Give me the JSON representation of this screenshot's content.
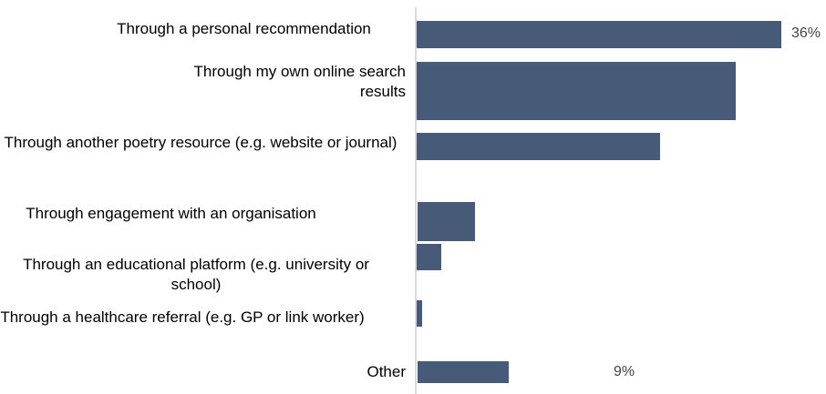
{
  "chart_data": {
    "type": "bar",
    "orientation": "horizontal",
    "color": "#475b79",
    "categories": [
      "Through a personal recommendation",
      "Through my own online search results",
      "Through another poetry resource (e.g. website or journal)",
      "Through engagement with an organisation",
      "Through an educational platform (e.g. university or school)",
      "Through a healthcare referral (e.g. GP or link worker)",
      "Other"
    ],
    "values": [
      36,
      31.5,
      24,
      5.7,
      2.4,
      0.5,
      9
    ],
    "value_labels": [
      "36%",
      null,
      null,
      null,
      null,
      null,
      "9%"
    ]
  }
}
